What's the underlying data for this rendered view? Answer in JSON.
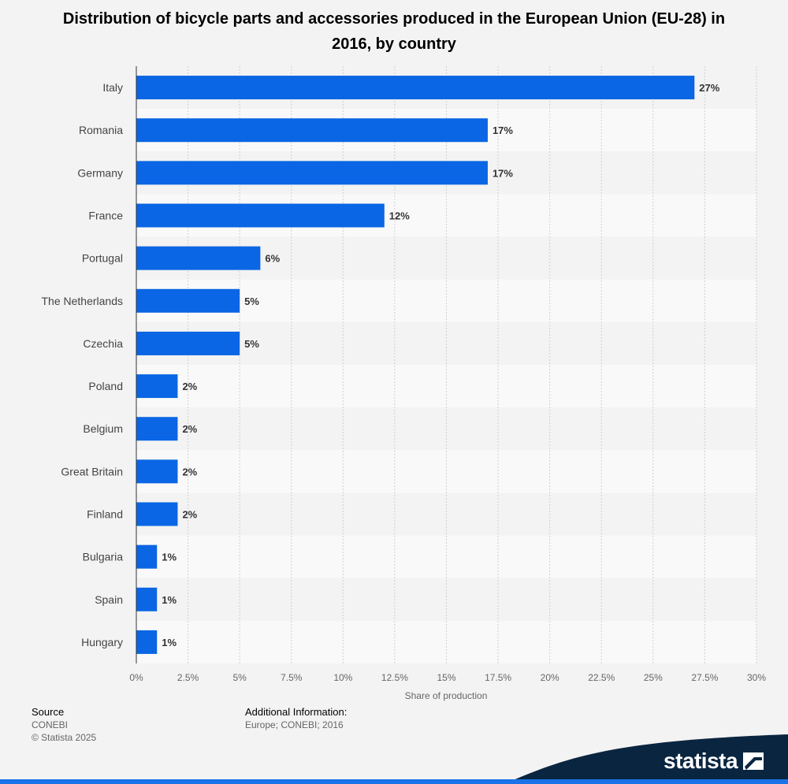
{
  "chart_data": {
    "type": "bar",
    "orientation": "horizontal",
    "title": "Distribution of bicycle parts and accessories produced in the European Union (EU-28) in 2016, by country",
    "xlabel": "Share of production",
    "ylabel": "",
    "categories": [
      "Italy",
      "Romania",
      "Germany",
      "France",
      "Portugal",
      "The Netherlands",
      "Czechia",
      "Poland",
      "Belgium",
      "Great Britain",
      "Finland",
      "Bulgaria",
      "Spain",
      "Hungary"
    ],
    "values": [
      27,
      17,
      17,
      12,
      6,
      5,
      5,
      2,
      2,
      2,
      2,
      1,
      1,
      1
    ],
    "data_labels": [
      "27%",
      "17%",
      "17%",
      "12%",
      "6%",
      "5%",
      "5%",
      "2%",
      "2%",
      "2%",
      "2%",
      "1%",
      "1%",
      "1%"
    ],
    "xlim": [
      0,
      30
    ],
    "ticks": [
      0,
      2.5,
      5,
      7.5,
      10,
      12.5,
      15,
      17.5,
      20,
      22.5,
      25,
      27.5,
      30
    ],
    "tick_labels": [
      "0%",
      "2.5%",
      "5%",
      "7.5%",
      "10%",
      "12.5%",
      "15%",
      "17.5%",
      "20%",
      "22.5%",
      "25%",
      "27.5%",
      "30%"
    ],
    "grid": true,
    "bar_color": "#0a66e4"
  },
  "footer": {
    "source_label": "Source",
    "source_value": "CONEBI",
    "copyright": "© Statista 2025",
    "additional_label": "Additional Information:",
    "additional_value": "Europe; CONEBI; 2016"
  },
  "brand": {
    "name": "statista",
    "color": "#0a2540",
    "accent": "#1a73e8"
  }
}
